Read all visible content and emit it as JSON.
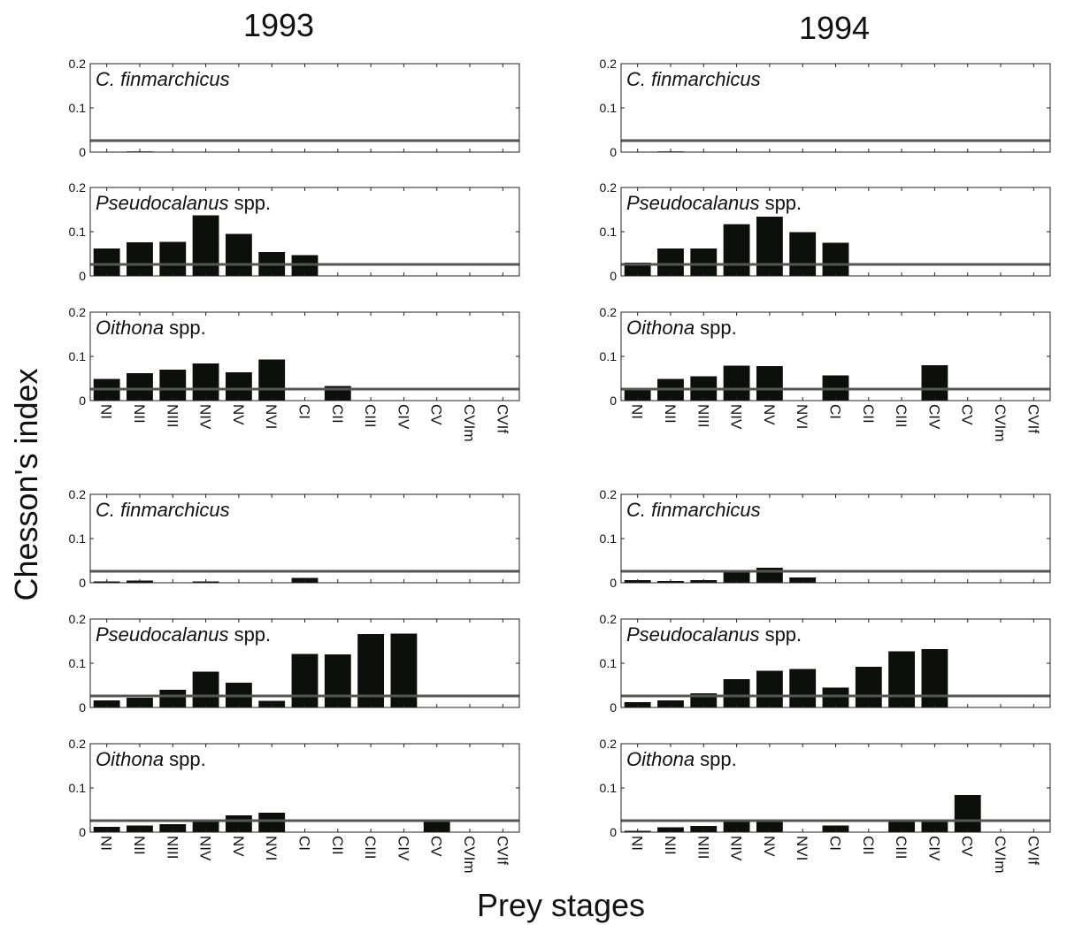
{
  "figure": {
    "col_titles": [
      "1993",
      "1994"
    ],
    "ylabel": "Chesson's index",
    "xlabel": "Prey stages"
  },
  "colors": {
    "bar": "#0d0f0d",
    "reference_line": "#555555",
    "axis": "#222222"
  },
  "chart_data": [
    {
      "type": "bar",
      "group": "top",
      "year": "1993",
      "species": "C. finmarchicus",
      "species_italic": "C. finmarchicus",
      "species_suffix": "",
      "show_xticks": false,
      "categories": [
        "NI",
        "NII",
        "NIII",
        "NIV",
        "NV",
        "NVI",
        "CI",
        "CII",
        "CIII",
        "CIV",
        "CV",
        "CVIm",
        "CVIf"
      ],
      "values": [
        null,
        0.001,
        null,
        null,
        null,
        null,
        null,
        null,
        null,
        null,
        null,
        null,
        null
      ],
      "ylim": [
        0,
        0.2
      ],
      "yticks": [
        0,
        0.1,
        0.2
      ],
      "reference_line": 0.026
    },
    {
      "type": "bar",
      "group": "top",
      "year": "1993",
      "species": "Pseudocalanus spp.",
      "species_italic": "Pseudocalanus",
      "species_suffix": " spp.",
      "show_xticks": false,
      "categories": [
        "NI",
        "NII",
        "NIII",
        "NIV",
        "NV",
        "NVI",
        "CI",
        "CII",
        "CIII",
        "CIV",
        "CV",
        "CVIm",
        "CVIf"
      ],
      "values": [
        0.062,
        0.076,
        0.077,
        0.137,
        0.095,
        0.054,
        0.047,
        null,
        null,
        null,
        null,
        null,
        null
      ],
      "ylim": [
        0,
        0.2
      ],
      "yticks": [
        0,
        0.1,
        0.2
      ],
      "reference_line": 0.026
    },
    {
      "type": "bar",
      "group": "top",
      "year": "1993",
      "species": "Oithona spp.",
      "species_italic": "Oithona",
      "species_suffix": " spp.",
      "show_xticks": true,
      "categories": [
        "NI",
        "NII",
        "NIII",
        "NIV",
        "NV",
        "NVI",
        "CI",
        "CII",
        "CIII",
        "CIV",
        "CV",
        "CVIm",
        "CVIf"
      ],
      "values": [
        0.049,
        0.062,
        0.07,
        0.084,
        0.064,
        0.093,
        null,
        0.033,
        null,
        null,
        null,
        null,
        null
      ],
      "ylim": [
        0,
        0.2
      ],
      "yticks": [
        0,
        0.1,
        0.2
      ],
      "reference_line": 0.026
    },
    {
      "type": "bar",
      "group": "top",
      "year": "1994",
      "species": "C. finmarchicus",
      "species_italic": "C. finmarchicus",
      "species_suffix": "",
      "show_xticks": false,
      "categories": [
        "NI",
        "NII",
        "NIII",
        "NIV",
        "NV",
        "NVI",
        "CI",
        "CII",
        "CIII",
        "CIV",
        "CV",
        "CVIm",
        "CVIf"
      ],
      "values": [
        null,
        0.001,
        null,
        null,
        null,
        null,
        null,
        null,
        null,
        null,
        null,
        null,
        null
      ],
      "ylim": [
        0,
        0.2
      ],
      "yticks": [
        0,
        0.1,
        0.2
      ],
      "reference_line": 0.026
    },
    {
      "type": "bar",
      "group": "top",
      "year": "1994",
      "species": "Pseudocalanus spp.",
      "species_italic": "Pseudocalanus",
      "species_suffix": " spp.",
      "show_xticks": false,
      "categories": [
        "NI",
        "NII",
        "NIII",
        "NIV",
        "NV",
        "NVI",
        "CI",
        "CII",
        "CIII",
        "CIV",
        "CV",
        "CVIm",
        "CVIf"
      ],
      "values": [
        0.03,
        0.062,
        0.062,
        0.117,
        0.134,
        0.099,
        0.075,
        null,
        null,
        null,
        null,
        null,
        null
      ],
      "ylim": [
        0,
        0.2
      ],
      "yticks": [
        0,
        0.1,
        0.2
      ],
      "reference_line": 0.026
    },
    {
      "type": "bar",
      "group": "top",
      "year": "1994",
      "species": "Oithona spp.",
      "species_italic": "Oithona",
      "species_suffix": " spp.",
      "show_xticks": true,
      "categories": [
        "NI",
        "NII",
        "NIII",
        "NIV",
        "NV",
        "NVI",
        "CI",
        "CII",
        "CIII",
        "CIV",
        "CV",
        "CVIm",
        "CVIf"
      ],
      "values": [
        0.027,
        0.049,
        0.055,
        0.079,
        0.078,
        null,
        0.057,
        null,
        null,
        0.08,
        null,
        null,
        null
      ],
      "ylim": [
        0,
        0.2
      ],
      "yticks": [
        0,
        0.1,
        0.2
      ],
      "reference_line": 0.026
    },
    {
      "type": "bar",
      "group": "bottom",
      "year": "1993",
      "species": "C. finmarchicus",
      "species_italic": "C. finmarchicus",
      "species_suffix": "",
      "show_xticks": false,
      "categories": [
        "NI",
        "NII",
        "NIII",
        "NIV",
        "NV",
        "NVI",
        "CI",
        "CII",
        "CIII",
        "CIV",
        "CV",
        "CVIm",
        "CVIf"
      ],
      "values": [
        0.003,
        0.005,
        null,
        0.003,
        null,
        null,
        0.011,
        null,
        null,
        null,
        null,
        null,
        null
      ],
      "ylim": [
        0,
        0.2
      ],
      "yticks": [
        0,
        0.1,
        0.2
      ],
      "reference_line": 0.026
    },
    {
      "type": "bar",
      "group": "bottom",
      "year": "1993",
      "species": "Pseudocalanus spp.",
      "species_italic": "Pseudocalanus",
      "species_suffix": " spp.",
      "show_xticks": false,
      "categories": [
        "NI",
        "NII",
        "NIII",
        "NIV",
        "NV",
        "NVI",
        "CI",
        "CII",
        "CIII",
        "CIV",
        "CV",
        "CVIm",
        "CVIf"
      ],
      "values": [
        0.016,
        0.022,
        0.04,
        0.081,
        0.056,
        0.015,
        0.121,
        0.12,
        0.166,
        0.167,
        null,
        null,
        null
      ],
      "ylim": [
        0,
        0.2
      ],
      "yticks": [
        0,
        0.1,
        0.2
      ],
      "reference_line": 0.026
    },
    {
      "type": "bar",
      "group": "bottom",
      "year": "1993",
      "species": "Oithona spp.",
      "species_italic": "Oithona",
      "species_suffix": " spp.",
      "show_xticks": true,
      "categories": [
        "NI",
        "NII",
        "NIII",
        "NIV",
        "NV",
        "NVI",
        "CI",
        "CII",
        "CIII",
        "CIV",
        "CV",
        "CVIm",
        "CVIf"
      ],
      "values": [
        0.012,
        0.015,
        0.018,
        0.027,
        0.038,
        0.044,
        null,
        null,
        null,
        null,
        0.025,
        null,
        null
      ],
      "ylim": [
        0,
        0.2
      ],
      "yticks": [
        0,
        0.1,
        0.2
      ],
      "reference_line": 0.026
    },
    {
      "type": "bar",
      "group": "bottom",
      "year": "1994",
      "species": "C. finmarchicus",
      "species_italic": "C. finmarchicus",
      "species_suffix": "",
      "show_xticks": false,
      "categories": [
        "NI",
        "NII",
        "NIII",
        "NIV",
        "NV",
        "NVI",
        "CI",
        "CII",
        "CIII",
        "CIV",
        "CV",
        "CVIm",
        "CVIf"
      ],
      "values": [
        0.006,
        0.004,
        0.006,
        0.025,
        0.034,
        0.012,
        null,
        null,
        null,
        null,
        null,
        null,
        null
      ],
      "ylim": [
        0,
        0.2
      ],
      "yticks": [
        0,
        0.1,
        0.2
      ],
      "reference_line": 0.026
    },
    {
      "type": "bar",
      "group": "bottom",
      "year": "1994",
      "species": "Pseudocalanus spp.",
      "species_italic": "Pseudocalanus",
      "species_suffix": " spp.",
      "show_xticks": false,
      "categories": [
        "NI",
        "NII",
        "NIII",
        "NIV",
        "NV",
        "NVI",
        "CI",
        "CII",
        "CIII",
        "CIV",
        "CV",
        "CVIm",
        "CVIf"
      ],
      "values": [
        0.012,
        0.016,
        0.032,
        0.064,
        0.083,
        0.087,
        0.045,
        0.092,
        0.127,
        0.132,
        null,
        null,
        null
      ],
      "ylim": [
        0,
        0.2
      ],
      "yticks": [
        0,
        0.1,
        0.2
      ],
      "reference_line": 0.026
    },
    {
      "type": "bar",
      "group": "bottom",
      "year": "1994",
      "species": "Oithona spp.",
      "species_italic": "Oithona",
      "species_suffix": " spp.",
      "show_xticks": true,
      "categories": [
        "NI",
        "NII",
        "NIII",
        "NIV",
        "NV",
        "NVI",
        "CI",
        "CII",
        "CIII",
        "CIV",
        "CV",
        "CVIm",
        "CVIf"
      ],
      "values": [
        0.003,
        0.011,
        0.014,
        0.023,
        0.029,
        null,
        0.015,
        null,
        0.027,
        0.025,
        0.084,
        null,
        null
      ],
      "ylim": [
        0,
        0.2
      ],
      "yticks": [
        0,
        0.1,
        0.2
      ],
      "reference_line": 0.026
    }
  ]
}
